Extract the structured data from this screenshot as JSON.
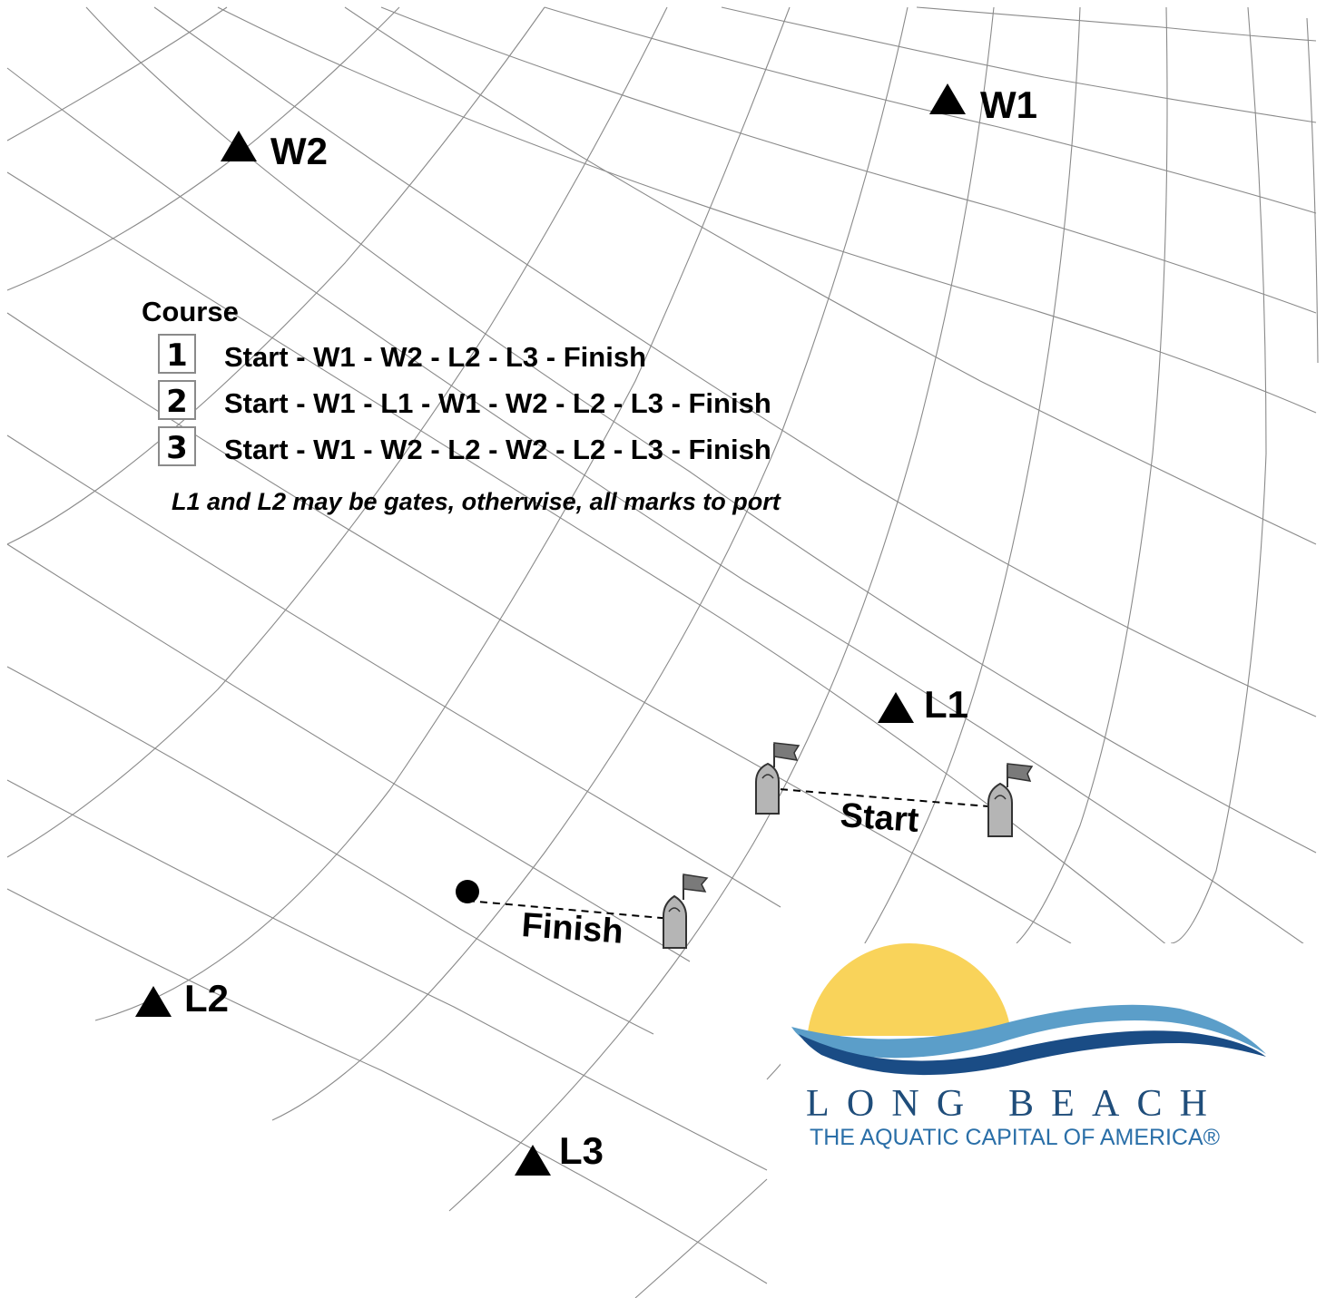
{
  "marks": {
    "w1": "W1",
    "w2": "W2",
    "l1": "L1",
    "l2": "L2",
    "l3": "L3"
  },
  "lines": {
    "start": "Start",
    "finish": "Finish"
  },
  "course": {
    "heading": "Course",
    "options": [
      {
        "number": "1",
        "route": "Start - W1 - W2 - L2 - L3 - Finish"
      },
      {
        "number": "2",
        "route": "Start - W1 - L1 - W1 - W2 - L2 - L3 - Finish"
      },
      {
        "number": "3",
        "route": "Start - W1 - W2 - L2 - W2 - L2 - L3 - Finish"
      }
    ],
    "note": "L1 and L2 may be gates, otherwise, all marks to port"
  },
  "logo": {
    "title": "LONG BEACH",
    "subtitle": "THE AQUATIC CAPITAL OF AMERICA®"
  },
  "colors": {
    "grid": "#8a8a8a",
    "mark": "#000000",
    "boat_fill": "#b5b5b5",
    "flag_fill": "#7a7a7a",
    "sun": "#f9d35a",
    "wave_light": "#5b9ec9",
    "wave_dark": "#1a4c85",
    "logo_text": "#1f4d7a"
  }
}
